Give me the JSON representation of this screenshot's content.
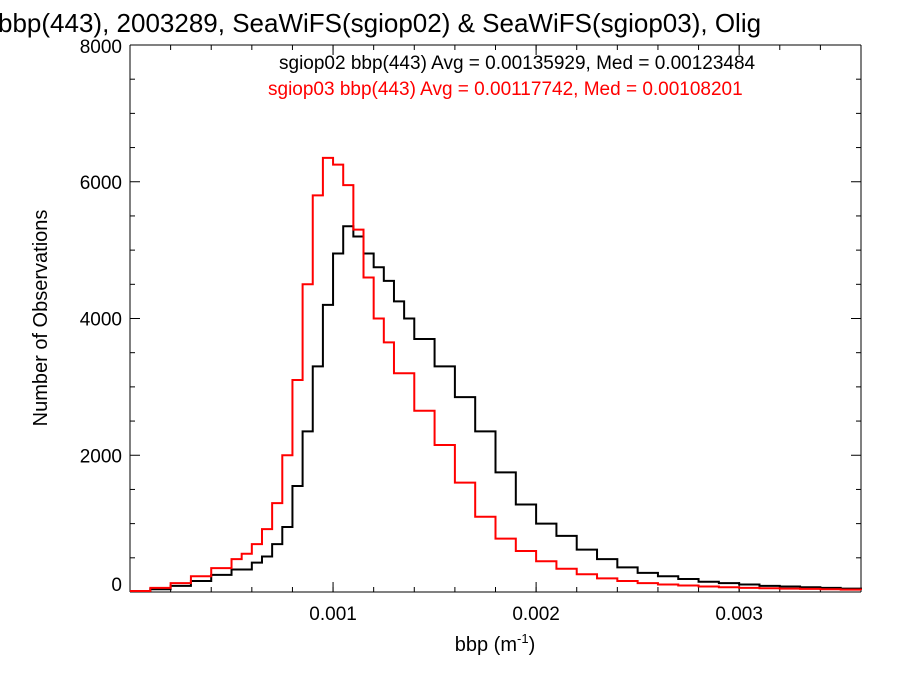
{
  "chart_data": {
    "type": "line",
    "title": "bbp(443), 2003289, SeaWiFS(sgiop02) & SeaWiFS(sgiop03), Olig",
    "xlabel": "bbp (m",
    "xlabel_sup": "-1",
    "xlabel_close": ")",
    "ylabel": "Number of Observations",
    "xlim": [
      0.0,
      0.0036
    ],
    "ylim": [
      0,
      8000
    ],
    "x_ticks": [
      {
        "value": 0.001,
        "label": "0.001"
      },
      {
        "value": 0.002,
        "label": "0.002"
      },
      {
        "value": 0.003,
        "label": "0.003"
      }
    ],
    "y_ticks": [
      {
        "value": 0,
        "label": "0"
      },
      {
        "value": 2000,
        "label": "2000"
      },
      {
        "value": 4000,
        "label": "4000"
      },
      {
        "value": 6000,
        "label": "6000"
      },
      {
        "value": 8000,
        "label": "8000"
      }
    ],
    "grid": false,
    "legend_position": "top-right",
    "series": [
      {
        "name": "sgiop02",
        "color": "#000000",
        "legend_text": "sgiop02 bbp(443) Avg = 0.00135929, Med = 0.00123484",
        "points": [
          [
            0.0,
            10
          ],
          [
            0.0001,
            40
          ],
          [
            0.0002,
            90
          ],
          [
            0.0003,
            160
          ],
          [
            0.0004,
            250
          ],
          [
            0.0005,
            330
          ],
          [
            0.0006,
            430
          ],
          [
            0.00065,
            520
          ],
          [
            0.0007,
            700
          ],
          [
            0.00075,
            950
          ],
          [
            0.0008,
            1550
          ],
          [
            0.00085,
            2350
          ],
          [
            0.0009,
            3300
          ],
          [
            0.00095,
            4200
          ],
          [
            0.001,
            4950
          ],
          [
            0.00105,
            5350
          ],
          [
            0.0011,
            5200
          ],
          [
            0.00115,
            4950
          ],
          [
            0.0012,
            4750
          ],
          [
            0.00125,
            4550
          ],
          [
            0.0013,
            4250
          ],
          [
            0.00135,
            4000
          ],
          [
            0.0014,
            3700
          ],
          [
            0.0015,
            3300
          ],
          [
            0.0016,
            2850
          ],
          [
            0.0017,
            2350
          ],
          [
            0.0018,
            1750
          ],
          [
            0.0019,
            1280
          ],
          [
            0.002,
            1000
          ],
          [
            0.0021,
            820
          ],
          [
            0.0022,
            620
          ],
          [
            0.0023,
            480
          ],
          [
            0.0024,
            360
          ],
          [
            0.0025,
            280
          ],
          [
            0.0026,
            230
          ],
          [
            0.0027,
            190
          ],
          [
            0.0028,
            150
          ],
          [
            0.0029,
            130
          ],
          [
            0.003,
            110
          ],
          [
            0.0031,
            90
          ],
          [
            0.0032,
            80
          ],
          [
            0.0033,
            70
          ],
          [
            0.0034,
            60
          ],
          [
            0.0035,
            50
          ],
          [
            0.0036,
            45
          ]
        ]
      },
      {
        "name": "sgiop03",
        "color": "#ff0000",
        "legend_text": "sgiop03 bbp(443) Avg = 0.00117742, Med = 0.00108201",
        "points": [
          [
            0.0,
            15
          ],
          [
            0.0001,
            60
          ],
          [
            0.0002,
            130
          ],
          [
            0.0003,
            230
          ],
          [
            0.0004,
            350
          ],
          [
            0.0005,
            480
          ],
          [
            0.00055,
            560
          ],
          [
            0.0006,
            700
          ],
          [
            0.00065,
            920
          ],
          [
            0.0007,
            1300
          ],
          [
            0.00075,
            2000
          ],
          [
            0.0008,
            3100
          ],
          [
            0.00085,
            4500
          ],
          [
            0.0009,
            5800
          ],
          [
            0.00095,
            6350
          ],
          [
            0.001,
            6250
          ],
          [
            0.00105,
            5950
          ],
          [
            0.0011,
            5300
          ],
          [
            0.00115,
            4600
          ],
          [
            0.0012,
            4000
          ],
          [
            0.00125,
            3650
          ],
          [
            0.0013,
            3200
          ],
          [
            0.0014,
            2650
          ],
          [
            0.0015,
            2150
          ],
          [
            0.0016,
            1600
          ],
          [
            0.0017,
            1100
          ],
          [
            0.0018,
            780
          ],
          [
            0.0019,
            600
          ],
          [
            0.002,
            450
          ],
          [
            0.0021,
            340
          ],
          [
            0.0022,
            260
          ],
          [
            0.0023,
            200
          ],
          [
            0.0024,
            160
          ],
          [
            0.0025,
            130
          ],
          [
            0.0026,
            110
          ],
          [
            0.0027,
            95
          ],
          [
            0.0028,
            80
          ],
          [
            0.0029,
            70
          ],
          [
            0.003,
            60
          ],
          [
            0.0031,
            55
          ],
          [
            0.0032,
            50
          ],
          [
            0.0033,
            45
          ],
          [
            0.0034,
            40
          ],
          [
            0.0035,
            35
          ],
          [
            0.0036,
            30
          ]
        ]
      }
    ]
  }
}
